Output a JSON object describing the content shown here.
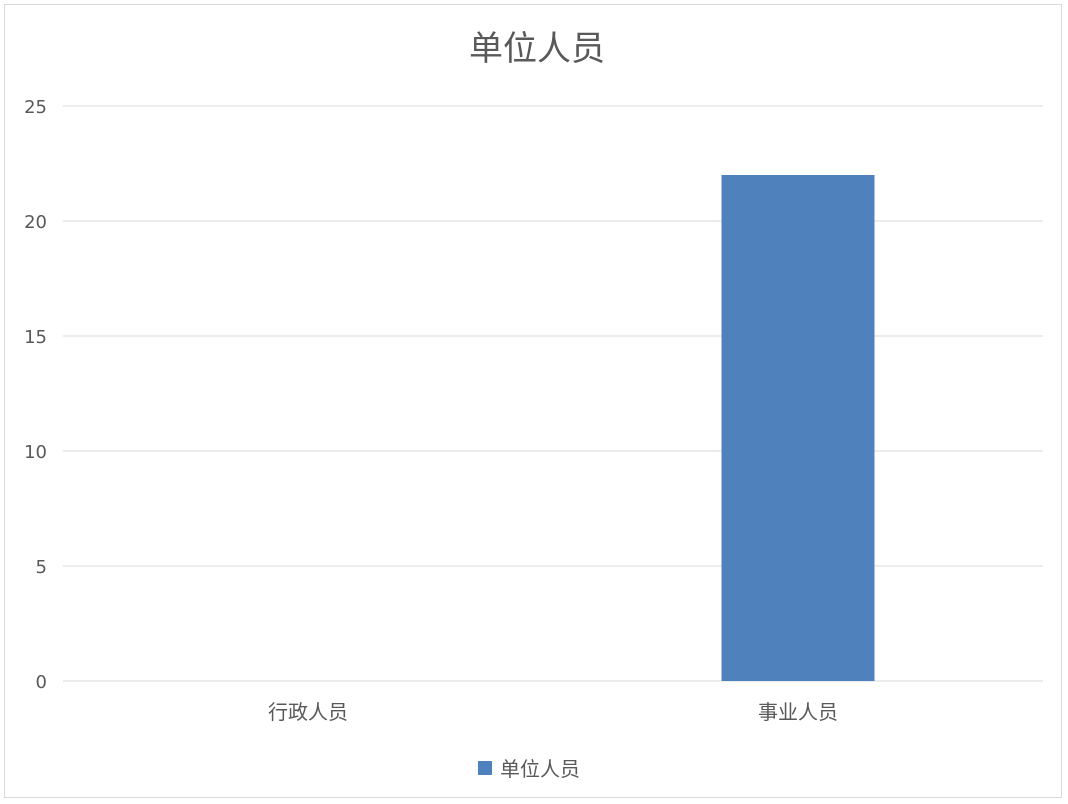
{
  "chart_data": {
    "type": "bar",
    "title": "单位人员",
    "categories": [
      "行政人员",
      "事业人员"
    ],
    "series": [
      {
        "name": "单位人员",
        "values": [
          0,
          22
        ],
        "color": "#4f81bd"
      }
    ],
    "ylim": [
      0,
      25
    ],
    "yticks": [
      0,
      5,
      10,
      15,
      20,
      25
    ],
    "grid": true,
    "legend_position": "bottom"
  }
}
